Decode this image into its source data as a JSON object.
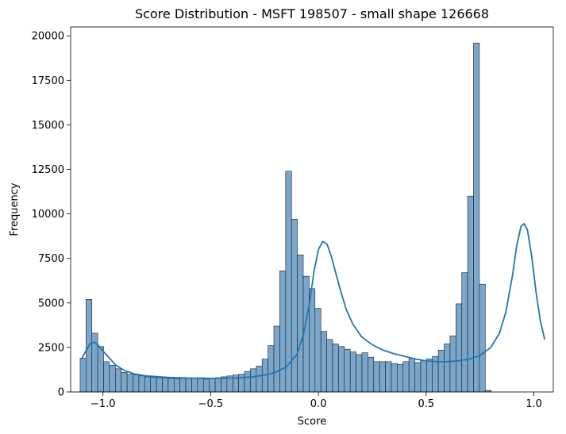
{
  "chart_data": {
    "type": "histogram",
    "title": "Score Distribution - MSFT 198507 - small shape 126668",
    "xlabel": "Score",
    "ylabel": "Frequency",
    "xlim": [
      -1.15,
      1.09
    ],
    "ylim": [
      0,
      20500
    ],
    "xticks": [
      -1.0,
      -0.5,
      0.0,
      0.5,
      1.0
    ],
    "xtick_labels": [
      "−1.0",
      "−0.5",
      "0.0",
      "0.5",
      "1.0"
    ],
    "yticks": [
      0,
      2500,
      5000,
      7500,
      10000,
      12500,
      15000,
      17500,
      20000
    ],
    "ytick_labels": [
      "0",
      "2500",
      "5000",
      "7500",
      "10000",
      "12500",
      "15000",
      "17500",
      "20000"
    ],
    "grid": false,
    "bin_start": -1.106,
    "bin_width": 0.02725,
    "counts": [
      1900,
      5200,
      3300,
      2550,
      1700,
      1500,
      1300,
      1100,
      1000,
      950,
      900,
      850,
      820,
      800,
      780,
      760,
      750,
      760,
      780,
      790,
      800,
      720,
      780,
      800,
      850,
      900,
      950,
      1000,
      1150,
      1300,
      1450,
      1850,
      2600,
      3700,
      6800,
      12400,
      9700,
      7700,
      6500,
      5800,
      4700,
      3400,
      2950,
      2700,
      2550,
      2400,
      2250,
      2100,
      2200,
      1950,
      1700,
      1700,
      1700,
      1600,
      1550,
      1700,
      1900,
      1650,
      1750,
      1850,
      2000,
      2350,
      2700,
      3150,
      4950,
      6700,
      11000,
      19600,
      6050,
      90
    ],
    "kde": {
      "x": [
        -1.1,
        -1.08,
        -1.06,
        -1.04,
        -1.02,
        -1.0,
        -0.97,
        -0.94,
        -0.9,
        -0.85,
        -0.8,
        -0.7,
        -0.6,
        -0.5,
        -0.4,
        -0.3,
        -0.25,
        -0.2,
        -0.15,
        -0.1,
        -0.07,
        -0.04,
        -0.02,
        0.0,
        0.02,
        0.04,
        0.06,
        0.08,
        0.1,
        0.13,
        0.16,
        0.2,
        0.25,
        0.3,
        0.35,
        0.4,
        0.45,
        0.5,
        0.55,
        0.6,
        0.65,
        0.7,
        0.75,
        0.8,
        0.84,
        0.87,
        0.9,
        0.92,
        0.94,
        0.955,
        0.97,
        0.99,
        1.01,
        1.03,
        1.05
      ],
      "y": [
        1850,
        2300,
        2700,
        2800,
        2600,
        2300,
        1900,
        1500,
        1200,
        1000,
        900,
        820,
        780,
        760,
        780,
        850,
        950,
        1100,
        1400,
        2100,
        3200,
        5100,
        6800,
        8000,
        8450,
        8300,
        7600,
        6700,
        5800,
        4600,
        3800,
        3100,
        2650,
        2350,
        2150,
        2000,
        1850,
        1750,
        1700,
        1700,
        1750,
        1850,
        2050,
        2500,
        3300,
        4500,
        6500,
        8200,
        9300,
        9450,
        9100,
        7600,
        5600,
        4000,
        2950
      ]
    }
  }
}
